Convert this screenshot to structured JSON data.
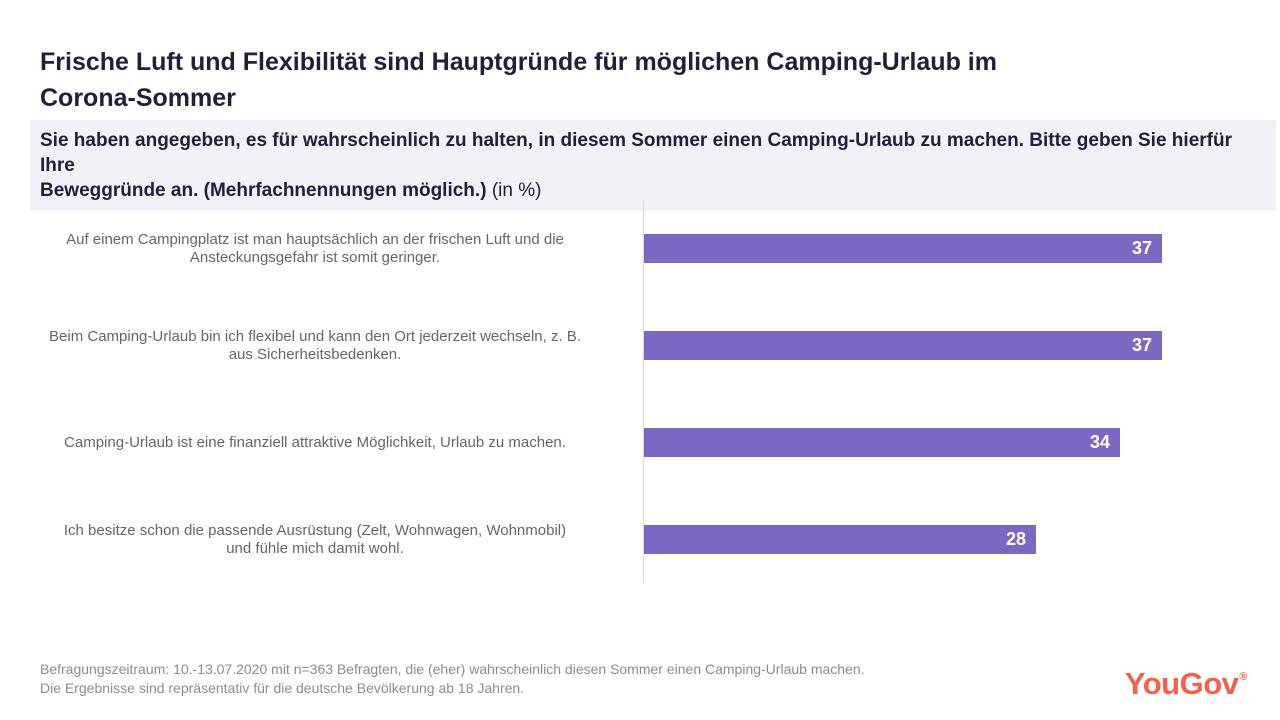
{
  "header": {
    "title": "Frische Luft und Flexibilität sind Hauptgründe für möglichen Camping-Urlaub im\nCorona-Sommer",
    "question_bold": "Sie haben angegeben, es für wahrscheinlich zu halten, in diesem Sommer einen Camping-Urlaub zu machen. Bitte geben Sie hierfür Ihre\nBeweggründe an. (Mehrfachnennungen möglich.)",
    "unit_note": "(in %)"
  },
  "chart_data": {
    "type": "bar",
    "orientation": "horizontal",
    "unit": "%",
    "title": "Beweggründe für möglichen Camping-Urlaub im Corona-Sommer (in %)",
    "categories": [
      "Auf einem Campingplatz ist man hauptsächlich an der frischen Luft und die Ansteckungsgefahr ist somit geringer.",
      "Beim Camping-Urlaub bin ich flexibel und kann den Ort jederzeit wechseln, z. B. aus Sicherheitsbedenken.",
      "Camping-Urlaub ist eine finanziell attraktive Möglichkeit, Urlaub zu machen.",
      "Ich besitze schon die passende Ausrüstung (Zelt, Wohnwagen, Wohnmobil) und fühle mich damit wohl."
    ],
    "category_lines": [
      [
        "Auf einem Campingplatz ist man hauptsächlich an der frischen Luft und die",
        "Ansteckungsgefahr ist somit geringer."
      ],
      [
        "Beim Camping-Urlaub bin ich flexibel und kann den Ort jederzeit wechseln, z. B.",
        "aus Sicherheitsbedenken."
      ],
      [
        "Camping-Urlaub ist eine finanziell attraktive Möglichkeit, Urlaub zu machen."
      ],
      [
        "Ich besitze schon die passende Ausrüstung (Zelt, Wohnwagen, Wohnmobil)",
        "und fühle mich damit wohl."
      ]
    ],
    "values": [
      37,
      37,
      34,
      28
    ],
    "xlim": [
      0,
      37
    ],
    "value_labels_inside_bar": true,
    "grid": false,
    "legend": false
  },
  "footer": {
    "note_line1": "Befragungszeitraum: 10.-13.07.2020 mit n=363 Befragten, die (eher) wahrscheinlich diesen Sommer einen Camping-Urlaub machen.",
    "note_line2": "Die Ergebnisse sind repräsentativ für die deutsche Bevölkerung ab 18 Jahren.",
    "brand": "YouGov",
    "brand_mark": "®"
  },
  "colors": {
    "bar": "#7B68C3",
    "bar_value_text": "#FFFFFF",
    "title_text": "#21203B",
    "question_box_bg": "#F1F1F8",
    "category_label_text": "#666666",
    "footnote_text": "#8C8C8C",
    "brand": "#F4604C",
    "axis_line": "#D9D9D9",
    "background": "#FFFFFF"
  }
}
